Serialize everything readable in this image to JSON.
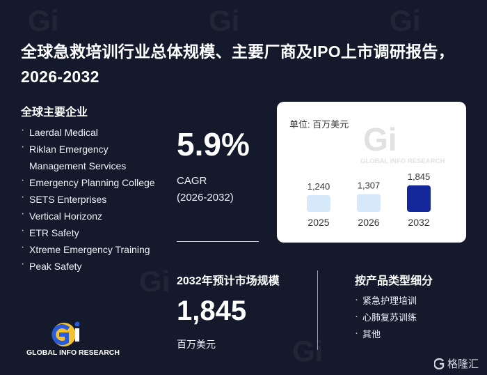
{
  "title": "全球急救培训行业总体规模、主要厂商及IPO上市调研报告，2026-2032",
  "companies": {
    "heading": "全球主要企业",
    "items": [
      "Laerdal Medical",
      "Riklan Emergency Management Services",
      "Emergency Planning College",
      "SETS Enterprises",
      "Vertical Horizonz",
      "ETR Safety",
      "Xtreme Emergency Training",
      "Peak Safety"
    ]
  },
  "logo": {
    "mark": "Gi",
    "text": "GLOBAL INFO RESEARCH"
  },
  "cagr": {
    "value": "5.9%",
    "label_line1": "CAGR",
    "label_line2": "(2026-2032)"
  },
  "market_2032": {
    "heading": "2032年预计市场规模",
    "value": "1,845",
    "unit": "百万美元"
  },
  "segments": {
    "heading": "按产品类型细分",
    "items": [
      "紧急护理培训",
      "心肺复苏训练",
      "其他"
    ]
  },
  "footer": {
    "brand": "格隆汇",
    "icon": "g-logo-icon"
  },
  "chart_data": {
    "type": "bar",
    "unit_label": "单位: 百万美元",
    "categories": [
      "2025",
      "2026",
      "2032"
    ],
    "values": [
      1240,
      1307,
      1845
    ],
    "value_labels": [
      "1,240",
      "1,307",
      "1,845"
    ],
    "colors": [
      "#d6e9fb",
      "#d6e9fb",
      "#13279a"
    ],
    "watermark": "GLOBAL INFO RESEARCH"
  }
}
